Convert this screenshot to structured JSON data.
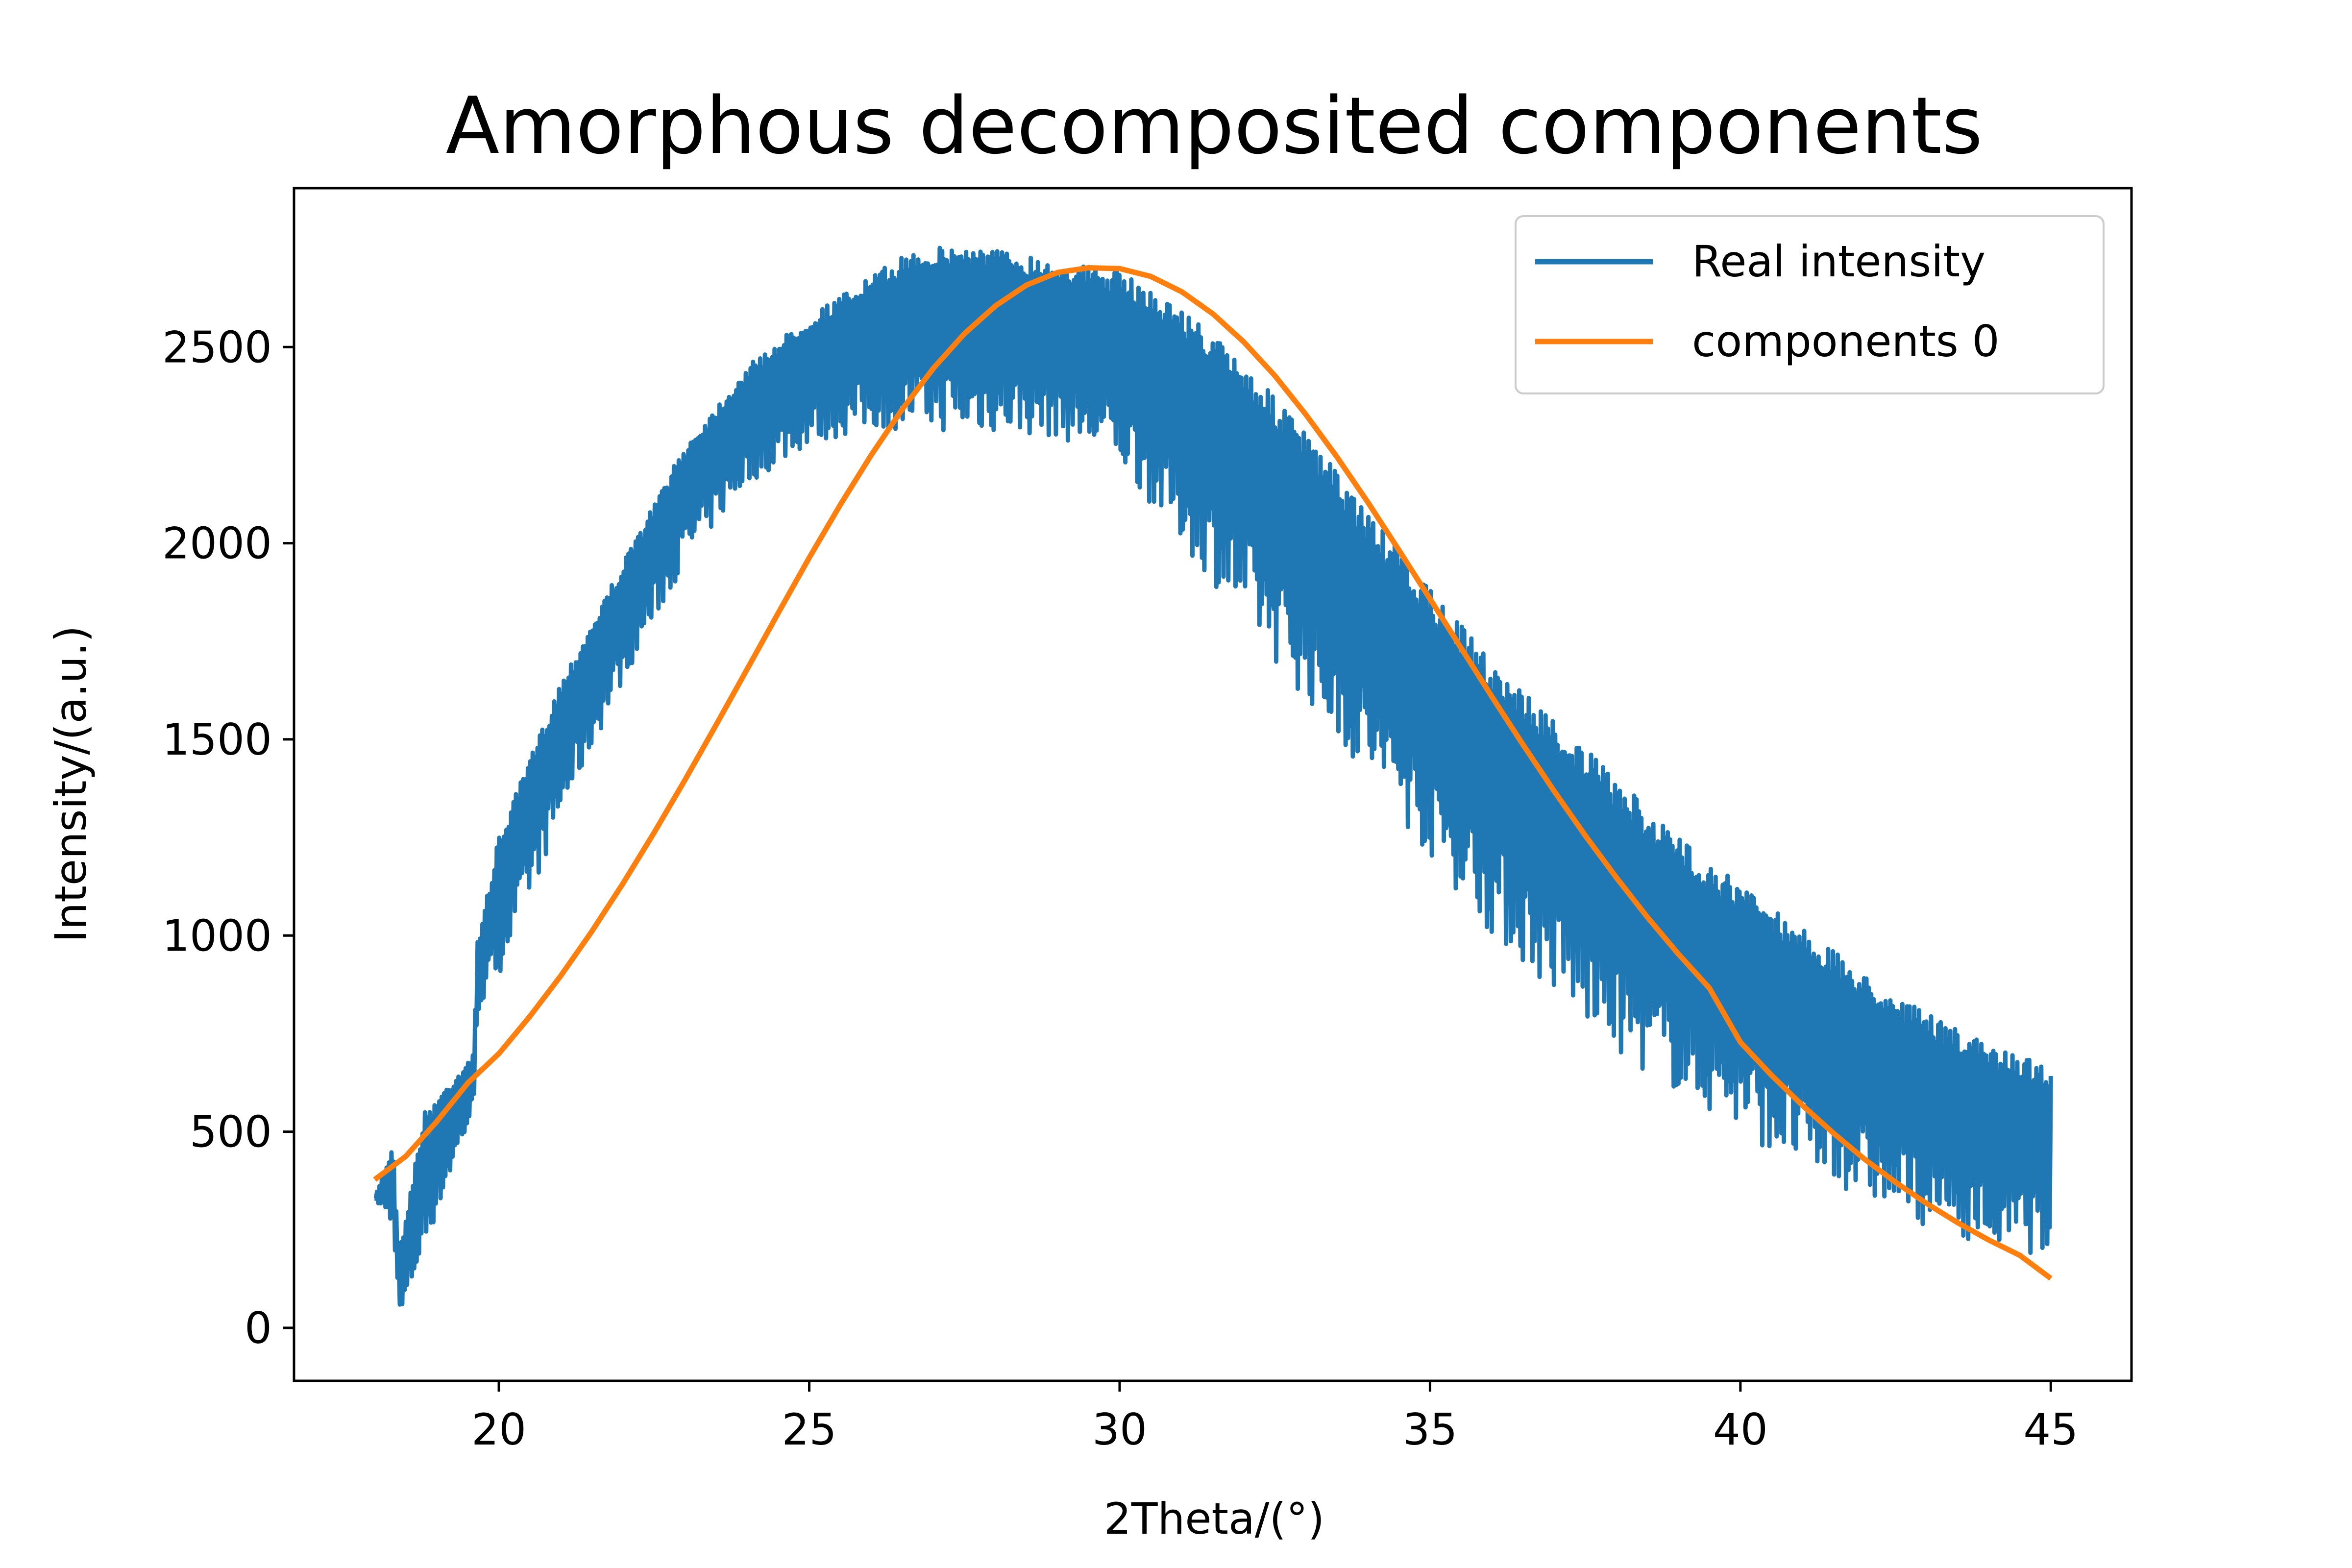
{
  "chart_data": {
    "type": "line",
    "title": "Amorphous decomposited components",
    "xlabel": "2Theta/(°)",
    "ylabel": "Intensity/(a.u.)",
    "xlim": [
      16.7,
      46.3
    ],
    "ylim": [
      -135,
      2905
    ],
    "xticks": [
      20,
      25,
      30,
      35,
      40,
      45
    ],
    "yticks": [
      0,
      500,
      1000,
      1500,
      2000,
      2500
    ],
    "grid": false,
    "legend": "top-right",
    "series": [
      {
        "name": "Real intensity",
        "color": "#1f77b4",
        "style": "noisy-band",
        "x": [
          18.0,
          18.3,
          18.35,
          18.4,
          18.8,
          19.6,
          19.65,
          20.0,
          21.0,
          22.0,
          23.0,
          24.0,
          25.0,
          26.0,
          26.7,
          27.5,
          28.0,
          29.0,
          30.0,
          31.0,
          32.0,
          33.0,
          34.0,
          35.0,
          36.0,
          37.0,
          38.0,
          39.0,
          40.0,
          41.0,
          42.0,
          43.0,
          44.0,
          45.0
        ],
        "upper": [
          330,
          470,
          300,
          200,
          550,
          700,
          980,
          1250,
          1650,
          1950,
          2250,
          2450,
          2580,
          2680,
          2750,
          2760,
          2750,
          2720,
          2690,
          2600,
          2460,
          2280,
          2080,
          1880,
          1700,
          1550,
          1400,
          1250,
          1130,
          1020,
          900,
          800,
          720,
          670
        ],
        "lower": [
          330,
          250,
          150,
          0,
          200,
          550,
          800,
          900,
          1300,
          1650,
          1950,
          2150,
          2250,
          2290,
          2290,
          2280,
          2280,
          2270,
          2200,
          2000,
          1800,
          1600,
          1400,
          1200,
          1000,
          850,
          700,
          600,
          500,
          400,
          330,
          260,
          210,
          180
        ]
      },
      {
        "name": "components 0",
        "color": "#ff7f0e",
        "style": "line",
        "x": [
          18,
          18.5,
          19,
          19.5,
          20,
          20.5,
          21,
          21.5,
          22,
          22.5,
          23,
          23.5,
          24,
          24.5,
          25,
          25.5,
          26,
          26.5,
          27,
          27.5,
          28,
          28.5,
          29,
          29.5,
          30,
          30.5,
          31,
          31.5,
          32,
          32.5,
          33,
          33.5,
          34,
          34.5,
          35,
          35.5,
          36,
          36.5,
          37,
          37.5,
          38,
          38.5,
          39,
          39.5,
          40,
          40.5,
          41,
          41.5,
          42,
          42.5,
          43,
          43.5,
          44,
          44.5,
          45
        ],
        "y": [
          378,
          437,
          526,
          624,
          699,
          794,
          898,
          1011,
          1133,
          1262,
          1397,
          1537,
          1679,
          1822,
          1963,
          2098,
          2225,
          2342,
          2446,
          2534,
          2605,
          2658,
          2690,
          2702,
          2700,
          2680,
          2641,
          2585,
          2513,
          2427,
          2328,
          2220,
          2104,
          1982,
          1858,
          1733,
          1608,
          1486,
          1368,
          1255,
          1148,
          1047,
          953,
          866,
          728,
          644,
          567,
          496,
          430,
          371,
          317,
          268,
          224,
          185,
          126
        ]
      }
    ]
  }
}
